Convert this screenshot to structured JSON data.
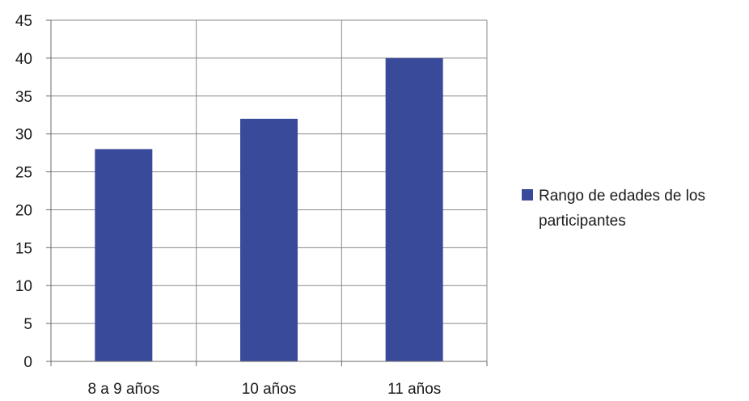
{
  "chart_data": {
    "type": "bar",
    "categories": [
      "8 a 9 años",
      "10 años",
      "11 años"
    ],
    "series": [
      {
        "name": "Rango de edades de los participantes",
        "values": [
          28,
          32,
          40
        ],
        "color": "#3a4a9a"
      }
    ],
    "title": "",
    "xlabel": "",
    "ylabel": "",
    "ylim": [
      0,
      45
    ],
    "yticks": [
      0,
      5,
      10,
      15,
      20,
      25,
      30,
      35,
      40,
      45
    ],
    "grid": true,
    "legend_position": "right",
    "legend_lines": [
      "Rango de edades de los",
      "participantes"
    ]
  }
}
